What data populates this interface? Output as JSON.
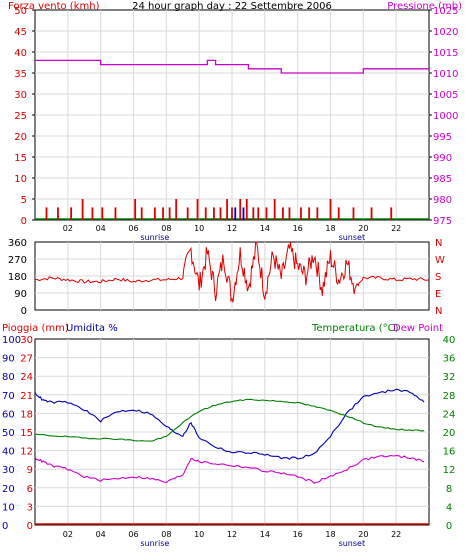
{
  "chart_data": [
    {
      "type": "bar",
      "title": "24 hour graph day : 22 Settembre 2006",
      "ylabel": "Forza vento (kmh)",
      "y2label": "Pressione (mb)",
      "ylim": [
        0,
        50
      ],
      "y2lim": [
        975,
        1025
      ],
      "yticks": [
        0,
        5,
        10,
        15,
        20,
        25,
        30,
        35,
        40,
        45,
        50
      ],
      "y2ticks": [
        975,
        980,
        985,
        990,
        995,
        1000,
        1005,
        1010,
        1015,
        1020,
        1025
      ],
      "xlim": [
        0,
        24
      ],
      "xticks": [
        "02",
        "04",
        "06",
        "08",
        "10",
        "12",
        "14",
        "16",
        "18",
        "20",
        "22"
      ],
      "markers": [
        {
          "label": "sunrise",
          "x": 7.3
        },
        {
          "label": "sunset",
          "x": 19.3
        }
      ],
      "grid": true,
      "colors": {
        "wind": "#dd0000",
        "gust": "#0000cc",
        "pressure": "#cc00cc",
        "baseline": "#008000"
      },
      "series": [
        {
          "values_kind": "wind_bars",
          "x": [
            0.7,
            1.4,
            2.2,
            2.9,
            3.5,
            4.1,
            4.9,
            6.1,
            6.5,
            7.3,
            7.8,
            8.2,
            8.6,
            9.3,
            9.9,
            10.4,
            10.9,
            11.3,
            11.7,
            12.0,
            12.2,
            12.5,
            12.7,
            12.9,
            13.3,
            13.6,
            14.1,
            14.6,
            15.1,
            15.5,
            16.2,
            16.7,
            17.2,
            18.0,
            18.5,
            19.4,
            20.5,
            21.7
          ],
          "values": [
            3,
            3,
            3,
            5,
            3,
            3,
            3,
            5,
            3,
            3,
            3,
            3,
            5,
            3,
            5,
            3,
            3,
            3,
            5,
            3,
            3,
            5,
            3,
            5,
            3,
            3,
            3,
            5,
            3,
            3,
            3,
            3,
            3,
            5,
            3,
            3,
            3,
            3
          ]
        },
        {
          "values_kind": "pressure_line",
          "x": [
            0,
            2,
            4,
            6,
            8,
            10,
            10.5,
            11,
            12,
            13,
            14,
            15,
            16,
            17,
            18,
            19,
            20,
            22,
            24
          ],
          "values": [
            1013,
            1013,
            1012,
            1012,
            1012,
            1012,
            1013,
            1012,
            1012,
            1011,
            1011,
            1010,
            1010,
            1010,
            1010,
            1010,
            1011,
            1011,
            1011
          ]
        }
      ]
    },
    {
      "type": "line",
      "ylabel": "",
      "ylim": [
        0,
        360
      ],
      "yticks": [
        0,
        90,
        180,
        270,
        360
      ],
      "y2ticks_text": [
        "N",
        "E",
        "S",
        "W",
        "N"
      ],
      "xlim": [
        0,
        24
      ],
      "color": "#dd0000",
      "series": [
        {
          "x": [
            0,
            1,
            2,
            3,
            4,
            5,
            6,
            7,
            8,
            9,
            9.5,
            10,
            10.5,
            11,
            11.5,
            12,
            12.5,
            13,
            13.5,
            14,
            14.5,
            15,
            15.5,
            16,
            16.5,
            17,
            17.5,
            18,
            18.5,
            19,
            19.5,
            20,
            21,
            22,
            23,
            24
          ],
          "values": [
            160,
            170,
            160,
            150,
            150,
            165,
            150,
            160,
            160,
            170,
            320,
            130,
            300,
            100,
            280,
            60,
            300,
            120,
            340,
            90,
            290,
            170,
            320,
            230,
            180,
            300,
            110,
            280,
            160,
            250,
            120,
            170,
            170,
            160,
            165,
            160
          ]
        }
      ]
    },
    {
      "type": "line",
      "ylabels": [
        "Pioggia (mm)",
        "Umidita %",
        "Temperatura (°C)",
        "Dew Point"
      ],
      "ylim_rain": [
        0,
        30
      ],
      "yticks_rain": [
        0,
        3,
        6,
        9,
        12,
        15,
        18,
        21,
        24,
        27,
        30
      ],
      "ylim_humidity": [
        0,
        100
      ],
      "yticks_humidity": [
        0,
        10,
        20,
        30,
        40,
        50,
        60,
        70,
        80,
        90,
        100
      ],
      "ylim_temp": [
        0,
        40
      ],
      "yticks_temp": [
        0,
        4,
        8,
        12,
        16,
        20,
        24,
        28,
        32,
        36,
        40
      ],
      "xlim": [
        0,
        24
      ],
      "xticks": [
        "02",
        "04",
        "06",
        "08",
        "10",
        "12",
        "14",
        "16",
        "18",
        "20",
        "22"
      ],
      "markers": [
        {
          "label": "sunrise",
          "x": 7.3
        },
        {
          "label": "sunset",
          "x": 19.3
        }
      ],
      "colors": {
        "rain": "#dd0000",
        "humidity": "#0000aa",
        "temperature": "#008000",
        "dewpoint": "#cc00cc"
      },
      "series": [
        {
          "name": "Umidita %",
          "x": [
            0,
            0.5,
            1,
            2,
            3,
            4,
            5,
            6,
            7,
            8,
            8.5,
            9,
            9.5,
            10,
            11,
            12,
            13,
            14,
            15,
            16,
            17,
            18,
            19,
            20,
            21,
            22,
            23,
            23.7
          ],
          "values": [
            71,
            67,
            66,
            66,
            62,
            56,
            61,
            62,
            60,
            53,
            50,
            48,
            55,
            47,
            42,
            39,
            39,
            38,
            36,
            36,
            38,
            48,
            60,
            69,
            71,
            73,
            71,
            66
          ]
        },
        {
          "name": "Temperatura (°C)",
          "x": [
            0,
            1,
            2,
            3,
            4,
            5,
            6,
            7,
            8,
            9,
            10,
            11,
            12,
            13,
            14,
            15,
            16,
            17,
            18,
            19,
            20,
            21,
            22,
            23,
            23.7
          ],
          "values": [
            19.5,
            19.2,
            19,
            18.7,
            18.6,
            18.5,
            18.2,
            18.0,
            19.0,
            22,
            24.5,
            25.8,
            26.6,
            27.0,
            26.8,
            26.6,
            26.3,
            25.5,
            24.6,
            23.5,
            22,
            21,
            20.6,
            20.4,
            20.3
          ]
        },
        {
          "name": "Dew Point",
          "x": [
            0,
            0.5,
            1,
            2,
            3,
            4,
            5,
            6,
            7,
            8,
            9,
            9.5,
            10,
            11,
            12,
            13,
            14,
            15,
            16,
            17,
            18,
            19,
            20,
            21,
            22,
            23,
            23.7
          ],
          "values": [
            14.4,
            13.6,
            12.8,
            12.0,
            10.4,
            9.6,
            10.0,
            10.4,
            10.0,
            9.2,
            10.8,
            14.4,
            13.6,
            13.2,
            12.8,
            12.4,
            11.6,
            11.2,
            10.4,
            9.2,
            10.4,
            12.0,
            14.0,
            14.8,
            14.8,
            14.4,
            13.6
          ]
        },
        {
          "name": "Pioggia (mm)",
          "x": [
            0,
            24
          ],
          "values": [
            0,
            0
          ]
        }
      ]
    }
  ]
}
